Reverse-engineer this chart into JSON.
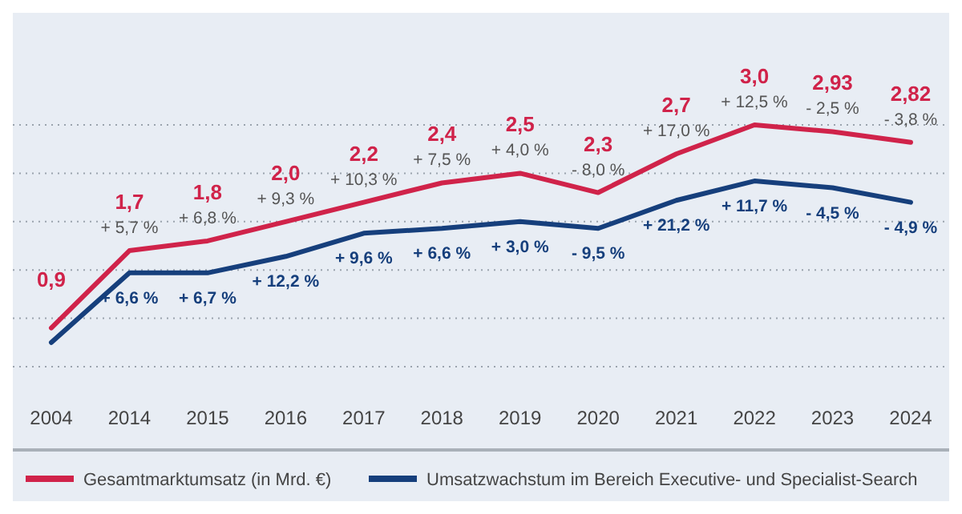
{
  "chart_data": {
    "type": "line",
    "categories": [
      "2004",
      "2014",
      "2015",
      "2016",
      "2017",
      "2018",
      "2019",
      "2020",
      "2021",
      "2022",
      "2023",
      "2024"
    ],
    "series": [
      {
        "name": "Gesamtmarktumsatz (in Mrd. €)",
        "color": "#d0234a",
        "values": [
          0.9,
          1.7,
          1.8,
          2.0,
          2.2,
          2.4,
          2.5,
          2.3,
          2.7,
          3.0,
          2.93,
          2.82
        ],
        "value_labels": [
          "0,9",
          "1,7",
          "1,8",
          "2,0",
          "2,2",
          "2,4",
          "2,5",
          "2,3",
          "2,7",
          "3,0",
          "2,93",
          "2,82"
        ]
      },
      {
        "name": "Umsatzwachstum im Bereich Executive- und Specialist-Search",
        "color": "#163f7c",
        "values": [
          0.75,
          1.47,
          1.47,
          1.64,
          1.88,
          1.93,
          2.0,
          1.93,
          2.22,
          2.42,
          2.35,
          2.2
        ]
      }
    ],
    "yticks": [
      {
        "value": 0.5,
        "label": null
      },
      {
        "value": 1.0,
        "label": null
      },
      {
        "value": 1.5,
        "label": null
      },
      {
        "value": 2.0,
        "label": null
      },
      {
        "value": 2.5,
        "label": null
      },
      {
        "value": 3.0,
        "label": null
      }
    ],
    "grid": "y",
    "legend": "bottom",
    "tick_labels": "x",
    "line_style": "solid",
    "marker": "none",
    "annotations": [
      {
        "text": "+ 5,7 %",
        "x": "2014",
        "y": 1.7
      },
      {
        "text": "+ 6,8 %",
        "x": "2015",
        "y": 1.8
      },
      {
        "text": "+ 9,3 %",
        "x": "2016",
        "y": 2.0
      },
      {
        "text": "+ 10,3 %",
        "x": "2017",
        "y": 2.2
      },
      {
        "text": "+ 7,5 %",
        "x": "2018",
        "y": 2.4
      },
      {
        "text": "+ 4,0 %",
        "x": "2019",
        "y": 2.5
      },
      {
        "text": "- 8,0 %",
        "x": "2020",
        "y": 2.3
      },
      {
        "text": "+ 17,0 %",
        "x": "2021",
        "y": 2.7
      },
      {
        "text": "+ 12,5 %",
        "x": "2022",
        "y": 3.0
      },
      {
        "text": "- 2,5 %",
        "x": "2023",
        "y": 2.93
      },
      {
        "text": "- 3,8 %",
        "x": "2024",
        "y": 2.82
      },
      {
        "text": "+ 6,6 %",
        "x": "2014",
        "y": 1.47
      },
      {
        "text": "+ 6,7 %",
        "x": "2015",
        "y": 1.47
      },
      {
        "text": "+ 12,2 %",
        "x": "2016",
        "y": 1.64
      },
      {
        "text": "+ 9,6 %",
        "x": "2017",
        "y": 1.88
      },
      {
        "text": "+ 6,6 %",
        "x": "2018",
        "y": 1.93
      },
      {
        "text": "+ 3,0 %",
        "x": "2019",
        "y": 2.0
      },
      {
        "text": "- 9,5 %",
        "x": "2020",
        "y": 1.93
      },
      {
        "text": "+ 21,2 %",
        "x": "2021",
        "y": 2.22
      },
      {
        "text": "+ 11,7 %",
        "x": "2022",
        "y": 2.42
      },
      {
        "text": "- 4,5 %",
        "x": "2023",
        "y": 2.35
      },
      {
        "text": "- 4,9 %",
        "x": "2024",
        "y": 2.2
      }
    ]
  }
}
